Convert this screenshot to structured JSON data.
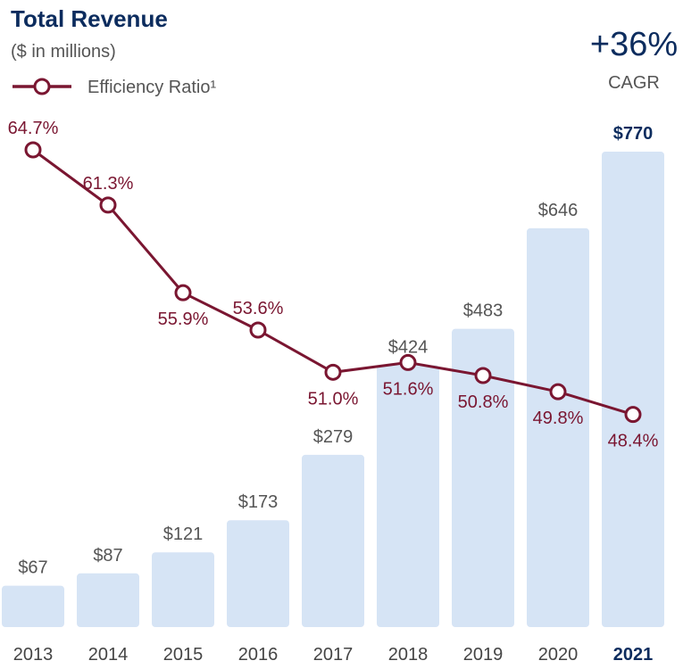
{
  "header": {
    "title": "Total Revenue",
    "subtitle": "($ in millions)",
    "legend_label": "Efficiency Ratio¹",
    "cagr_value": "+36%",
    "cagr_label": "CAGR"
  },
  "colors": {
    "title": "#0c2c5e",
    "bar": "#d6e4f5",
    "line": "#7a1631",
    "text": "#555555",
    "highlight_text": "#0c2c5e",
    "axis_text": "#444444"
  },
  "chart_data": {
    "type": "bar",
    "title": "Total Revenue",
    "subtitle": "($ in millions)",
    "categories": [
      "2013",
      "2014",
      "2015",
      "2016",
      "2017",
      "2018",
      "2019",
      "2020",
      "2021"
    ],
    "highlight_category": "2021",
    "series": [
      {
        "name": "Total Revenue",
        "type": "bar",
        "values": [
          67,
          87,
          121,
          173,
          279,
          424,
          483,
          646,
          770
        ],
        "labels": [
          "$67",
          "$87",
          "$121",
          "$173",
          "$279",
          "$424",
          "$483",
          "$646",
          "$770"
        ]
      },
      {
        "name": "Efficiency Ratio¹",
        "type": "line",
        "values": [
          64.7,
          61.3,
          55.9,
          53.6,
          51.0,
          51.6,
          50.8,
          49.8,
          48.4
        ],
        "labels": [
          "64.7%",
          "61.3%",
          "55.9%",
          "53.6%",
          "51.0%",
          "51.6%",
          "50.8%",
          "49.8%",
          "48.4%"
        ]
      }
    ],
    "annotations": [
      "+36%",
      "CAGR"
    ],
    "ylim_bars": [
      0,
      900
    ],
    "ylim_ratio": [
      40,
      70
    ],
    "grid": false,
    "legend": "top-left"
  }
}
